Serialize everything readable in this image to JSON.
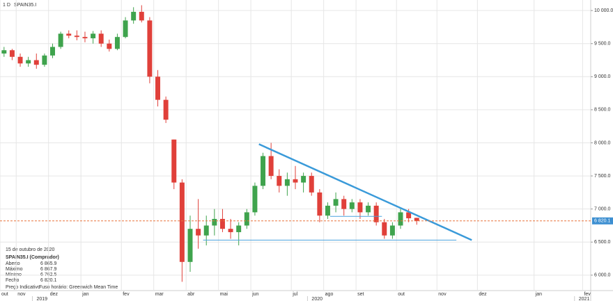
{
  "header": {
    "interval": "1 D",
    "symbol": "SPAIN35.I"
  },
  "chart_data": {
    "type": "candlestick",
    "categories": [
      "out",
      null,
      "nov",
      null,
      null,
      null,
      "dez",
      null,
      null,
      null,
      "jan",
      null,
      null,
      null,
      null,
      "fev",
      null,
      null,
      null,
      "mar",
      null,
      null,
      null,
      "abr",
      null,
      null,
      null,
      "mai",
      null,
      null,
      null,
      "jun",
      null,
      null,
      null,
      null,
      "jul",
      null,
      null,
      null,
      "ago",
      null,
      null,
      null,
      "set",
      null,
      null,
      null,
      null,
      "out",
      null,
      null,
      null,
      null,
      "nov",
      null,
      null,
      null,
      null,
      "dez",
      null,
      null,
      null,
      null,
      null,
      null,
      "jan",
      null,
      null,
      null,
      null,
      null,
      "fev"
    ],
    "year_labels": [
      null,
      null,
      null,
      null,
      "2019",
      null,
      null,
      null,
      null,
      null,
      null,
      null,
      null,
      null,
      null,
      null,
      null,
      null,
      null,
      null,
      null,
      null,
      null,
      null,
      null,
      null,
      null,
      null,
      null,
      null,
      null,
      null,
      null,
      null,
      null,
      null,
      null,
      null,
      "2020",
      null,
      null,
      null,
      null,
      null,
      null,
      null,
      null,
      null,
      null,
      null,
      null,
      null,
      null,
      null,
      null,
      null,
      null,
      null,
      null,
      null,
      null,
      null,
      null,
      null,
      null,
      null,
      null,
      null,
      null,
      null,
      null,
      "2021",
      null
    ],
    "open": [
      9350,
      9400,
      9300,
      9200,
      9250,
      9180,
      9320,
      9450,
      9650,
      9620,
      9600,
      9580,
      9650,
      9500,
      9420,
      9600,
      9850,
      9980,
      9850,
      9000,
      8650,
      8050,
      7400,
      6200,
      6700,
      6600,
      6750,
      6850,
      6700,
      6650,
      6750,
      6950,
      7350,
      7800,
      7500,
      7350,
      7450,
      7400,
      7500,
      7250,
      6900,
      7050,
      7150,
      7000,
      7100,
      6950,
      7050,
      6800,
      6600,
      6750,
      6950,
      6865.9,
      null,
      null,
      null,
      null,
      null,
      null,
      null,
      null,
      null,
      null,
      null,
      null,
      null,
      null,
      null,
      null,
      null,
      null,
      null,
      null,
      null
    ],
    "high": [
      9450,
      9420,
      9350,
      9300,
      9350,
      9350,
      9500,
      9680,
      9700,
      9700,
      9680,
      9690,
      9700,
      9560,
      9650,
      9900,
      10050,
      10080,
      9900,
      9100,
      8700,
      8050,
      7450,
      6900,
      7150,
      6900,
      7000,
      7000,
      6850,
      6800,
      7000,
      7400,
      7850,
      8000,
      7600,
      7550,
      7650,
      7550,
      7550,
      7300,
      7100,
      7250,
      7200,
      7150,
      7150,
      7100,
      7100,
      6850,
      6800,
      7000,
      7000,
      6867.9,
      null,
      null,
      null,
      null,
      null,
      null,
      null,
      null,
      null,
      null,
      null,
      null,
      null,
      null,
      null,
      null,
      null,
      null,
      null,
      null,
      null
    ],
    "low": [
      9300,
      9250,
      9150,
      9150,
      9120,
      9150,
      9280,
      9420,
      9580,
      9550,
      9520,
      9500,
      9450,
      9380,
      9400,
      9580,
      9800,
      9820,
      8900,
      8550,
      8300,
      7300,
      5900,
      6050,
      6400,
      6450,
      6600,
      6650,
      6550,
      6450,
      6700,
      6900,
      7300,
      7450,
      7250,
      7200,
      7300,
      7250,
      7200,
      6800,
      6850,
      6950,
      6900,
      6950,
      6850,
      6900,
      6750,
      6550,
      6550,
      6700,
      6800,
      6762.5,
      null,
      null,
      null,
      null,
      null,
      null,
      null,
      null,
      null,
      null,
      null,
      null,
      null,
      null,
      null,
      null,
      null,
      null,
      null,
      null,
      null
    ],
    "close": [
      9400,
      9300,
      9200,
      9250,
      9180,
      9320,
      9450,
      9650,
      9620,
      9600,
      9580,
      9650,
      9500,
      9420,
      9600,
      9850,
      9980,
      9850,
      9000,
      8650,
      8350,
      7400,
      6200,
      6700,
      6600,
      6750,
      6850,
      6700,
      6650,
      6750,
      6950,
      7350,
      7800,
      7500,
      7350,
      7450,
      7400,
      7500,
      7250,
      6900,
      7050,
      7150,
      7000,
      7100,
      6950,
      7050,
      6800,
      6600,
      6750,
      6950,
      6860,
      6820.1,
      null,
      null,
      null,
      null,
      null,
      null,
      null,
      null,
      null,
      null,
      null,
      null,
      null,
      null,
      null,
      null,
      null,
      null,
      null,
      null,
      null
    ],
    "up_color": "#3fa34d",
    "down_color": "#e0403a",
    "ylim": [
      5767,
      10159
    ],
    "yticks": [
      {
        "value": 6000,
        "label": "6 000.0"
      },
      {
        "value": 6500,
        "label": "6 500.0"
      },
      {
        "value": 7000,
        "label": "7 000.0"
      },
      {
        "value": 7500,
        "label": "7 500.0"
      },
      {
        "value": 8000,
        "label": "8 000.0"
      },
      {
        "value": 8500,
        "label": "8 500.0"
      },
      {
        "value": 9000,
        "label": "9 000.0"
      },
      {
        "value": 9500,
        "label": "9 500.0"
      },
      {
        "value": 10000,
        "label": "10 000.0"
      }
    ],
    "grid": true,
    "last_price": {
      "value": 6820.1,
      "label": "6 820.1",
      "color": "#e8743b",
      "label_color": "#3d8fd1"
    },
    "trendlines": [
      {
        "x": [
          31.5,
          57.8
        ],
        "y": [
          7980,
          6530
        ],
        "color": "#3a9ad9",
        "width": 2.5
      },
      {
        "x": [
          24.6,
          55.9
        ],
        "y": [
          6530,
          6530
        ],
        "color": "#4aa3df",
        "width": 1
      },
      {
        "x": [
          40.3,
          46.7
        ],
        "y": [
          6889,
          6889
        ],
        "color": "#4aa3df",
        "width": 1
      }
    ]
  },
  "info": {
    "date": "15 de outubro de 2020",
    "title": "SPAIN35.I (Comprador)",
    "rows": [
      [
        "Aberto",
        "6 865.9"
      ],
      [
        "Máximo",
        "6 867.9"
      ],
      [
        "Mínimo",
        "6 762.5"
      ],
      [
        "Fecho",
        "6 820.1"
      ]
    ],
    "footer_left": "Preço Indicativo",
    "footer_right": "Fuso horário: Greenwich Mean Time"
  }
}
